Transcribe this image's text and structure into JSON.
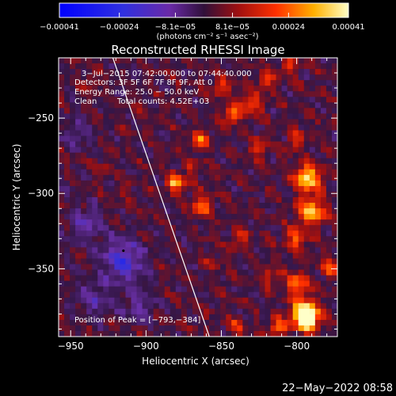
{
  "chart_data": {
    "type": "heatmap",
    "title": "Reconstructed RHESSI Image",
    "xlabel": "Heliocentric X (arcsec)",
    "ylabel": "Heliocentric Y (arcsec)",
    "xlim": [
      -958,
      -773
    ],
    "ylim": [
      -395,
      -210
    ],
    "x_ticks": [
      -950,
      -900,
      -850,
      -800
    ],
    "y_ticks": [
      -250,
      -300,
      -350
    ],
    "x_tick_labels": [
      "−950",
      "−900",
      "−850",
      "−800"
    ],
    "y_tick_labels": [
      "−250",
      "−300",
      "−350"
    ],
    "colorbar": {
      "range": [
        -0.00041,
        0.00041
      ],
      "ticks": [
        -0.00041,
        -0.00024,
        -8.1e-05,
        8.1e-05,
        0.00024,
        0.00041
      ],
      "tick_labels": [
        "−0.00041",
        "−0.00024",
        "−8.1e−05",
        "8.1e−05",
        "0.00024",
        "0.00041"
      ],
      "unit_label": "(photons cm⁻² s⁻¹ asec⁻²)"
    },
    "annotations": {
      "time": "3−Jul−2015 07:42:00.000 to 07:44:40.000",
      "detectors": "Detectors: 3F 5F 6F 7F 8F 9F, Att 0",
      "energy": "Energy Range: 25.0 − 50.0 keV",
      "method": "Clean",
      "counts": "Total counts: 4.52E+03",
      "peak": "Position of Peak = [−793,−384]"
    },
    "peak": {
      "x": -793,
      "y": -384
    },
    "limb_line": {
      "start": [
        -922,
        -210
      ],
      "end": [
        -858,
        -395
      ]
    },
    "pixel_grid": {
      "nx": 50,
      "ny": 50
    },
    "hotspots": [
      {
        "x": -880,
        "y": -293,
        "amp": 0.00033,
        "r": 4
      },
      {
        "x": -863,
        "y": -308,
        "amp": 0.00022,
        "r": 5
      },
      {
        "x": -864,
        "y": -265,
        "amp": 0.00024,
        "r": 4
      },
      {
        "x": -843,
        "y": -248,
        "amp": 0.00024,
        "r": 4
      },
      {
        "x": -850,
        "y": -230,
        "amp": 0.00018,
        "r": 4
      },
      {
        "x": -830,
        "y": -240,
        "amp": 0.0002,
        "r": 5
      },
      {
        "x": -820,
        "y": -225,
        "amp": 0.00018,
        "r": 4
      },
      {
        "x": -805,
        "y": -216,
        "amp": 0.00015,
        "r": 4
      },
      {
        "x": -825,
        "y": -270,
        "amp": 0.0002,
        "r": 4
      },
      {
        "x": -800,
        "y": -265,
        "amp": 0.00016,
        "r": 4
      },
      {
        "x": -793,
        "y": -290,
        "amp": 0.00036,
        "r": 6
      },
      {
        "x": -790,
        "y": -312,
        "amp": 0.00032,
        "r": 6
      },
      {
        "x": -800,
        "y": -330,
        "amp": 0.0002,
        "r": 5
      },
      {
        "x": -818,
        "y": -355,
        "amp": 0.00014,
        "r": 4
      },
      {
        "x": -800,
        "y": -360,
        "amp": 0.00025,
        "r": 5
      },
      {
        "x": -778,
        "y": -350,
        "amp": 0.0002,
        "r": 4
      },
      {
        "x": -795,
        "y": -378,
        "amp": 0.00034,
        "r": 6
      },
      {
        "x": -793,
        "y": -384,
        "amp": 0.00041,
        "r": 5
      },
      {
        "x": -812,
        "y": -389,
        "amp": 0.00024,
        "r": 4
      },
      {
        "x": -840,
        "y": -388,
        "amp": 0.00015,
        "r": 4
      },
      {
        "x": -838,
        "y": -330,
        "amp": 0.00015,
        "r": 4
      },
      {
        "x": -855,
        "y": -345,
        "amp": 0.0001,
        "r": 4
      },
      {
        "x": -870,
        "y": -282,
        "amp": 0.00014,
        "r": 3
      },
      {
        "x": -928,
        "y": -282,
        "amp": 8e-05,
        "r": 3
      },
      {
        "x": -915,
        "y": -300,
        "amp": 7e-05,
        "r": 3
      },
      {
        "x": -937,
        "y": -225,
        "amp": 8e-05,
        "r": 4
      },
      {
        "x": -905,
        "y": -240,
        "amp": 6e-05,
        "r": 4
      }
    ],
    "coldspots": [
      {
        "x": -915,
        "y": -345,
        "amp": -0.00022,
        "r": 10
      },
      {
        "x": -940,
        "y": -320,
        "amp": -0.00014,
        "r": 8
      },
      {
        "x": -935,
        "y": -370,
        "amp": -0.00013,
        "r": 8
      },
      {
        "x": -905,
        "y": -375,
        "amp": -0.00012,
        "r": 7
      },
      {
        "x": -945,
        "y": -260,
        "amp": -9e-05,
        "r": 7
      }
    ],
    "background": 2e-05,
    "ripple": 6e-05
  },
  "footer": {
    "datestamp": "22−May−2022 08:58"
  }
}
